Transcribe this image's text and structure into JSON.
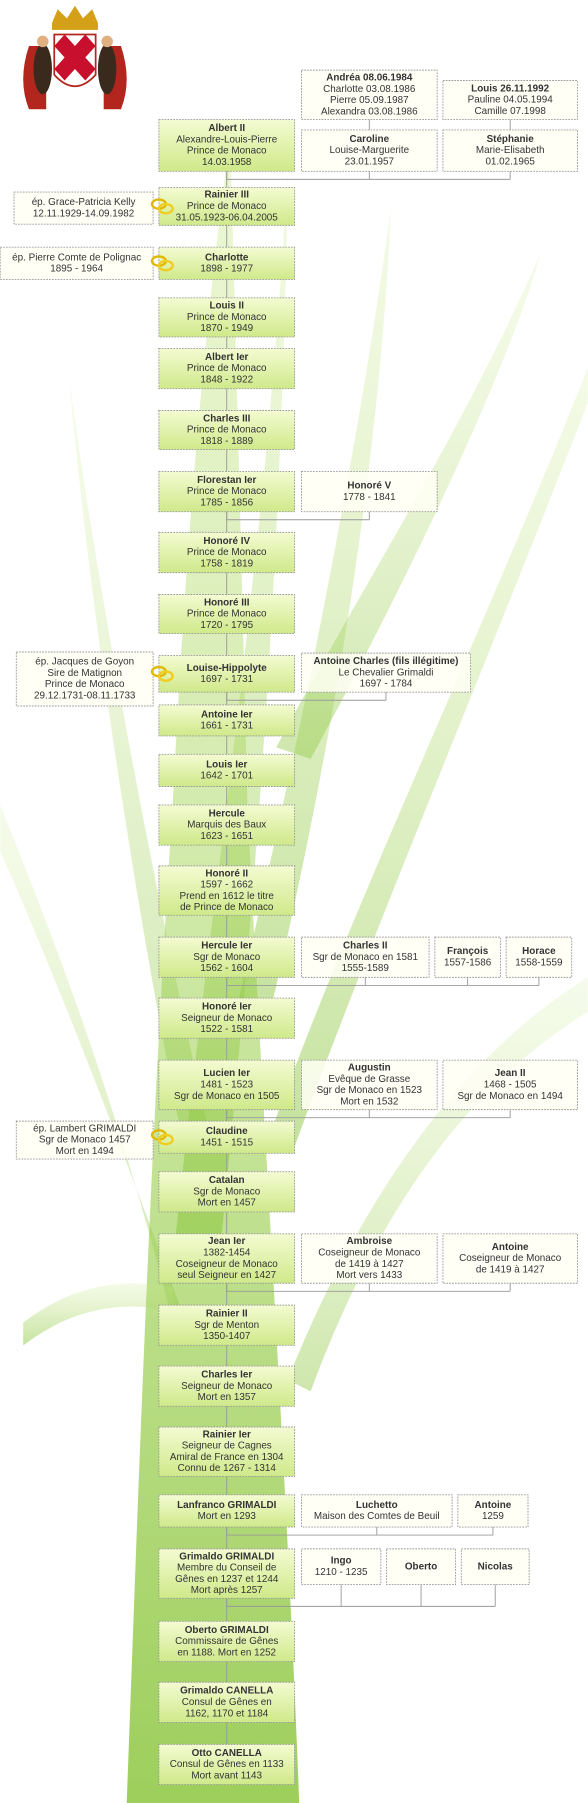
{
  "lineage": [
    {
      "lines": [
        "Albert II",
        "Alexandre-Louis-Pierre",
        "Prince de Monaco",
        "14.03.1958"
      ]
    },
    {
      "lines": [
        "Rainier III",
        "Prince de Monaco",
        "31.05.1923-06.04.2005"
      ]
    },
    {
      "lines": [
        "Charlotte",
        "1898 - 1977"
      ]
    },
    {
      "lines": [
        "Louis II",
        "Prince de Monaco",
        "1870 - 1949"
      ]
    },
    {
      "lines": [
        "Albert Ier",
        "Prince de Monaco",
        "1848 - 1922"
      ]
    },
    {
      "lines": [
        "Charles III",
        "Prince de Monaco",
        "1818 - 1889"
      ]
    },
    {
      "lines": [
        "Florestan Ier",
        "Prince de Monaco",
        "1785 - 1856"
      ]
    },
    {
      "lines": [
        "Honoré IV",
        "Prince de Monaco",
        "1758 - 1819"
      ]
    },
    {
      "lines": [
        "Honoré III",
        "Prince de Monaco",
        "1720 - 1795"
      ]
    },
    {
      "lines": [
        "Louise-Hippolyte",
        "1697 - 1731"
      ]
    },
    {
      "lines": [
        "Antoine Ier",
        "1661 - 1731"
      ]
    },
    {
      "lines": [
        "Louis Ier",
        "1642 - 1701"
      ]
    },
    {
      "lines": [
        "Hercule",
        "Marquis des Baux",
        "1623 - 1651"
      ]
    },
    {
      "lines": [
        "Honoré II",
        "1597 - 1662",
        "Prend en 1612 le titre",
        "de Prince de Monaco"
      ]
    },
    {
      "lines": [
        "Hercule Ier",
        "Sgr de Monaco",
        "1562 - 1604"
      ]
    },
    {
      "lines": [
        "Honoré Ier",
        "Seigneur de Monaco",
        "1522 - 1581"
      ]
    },
    {
      "lines": [
        "Lucien Ier",
        "1481 - 1523",
        "Sgr de Monaco en 1505"
      ]
    },
    {
      "lines": [
        "Claudine",
        "1451 - 1515"
      ]
    },
    {
      "lines": [
        "Catalan",
        "Sgr de Monaco",
        "Mort en 1457"
      ]
    },
    {
      "lines": [
        "Jean Ier",
        "1382-1454",
        "Coseigneur de Monaco",
        "seul Seigneur en 1427"
      ]
    },
    {
      "lines": [
        "Rainier II",
        "Sgr de Menton",
        "1350-1407"
      ]
    },
    {
      "lines": [
        "Charles Ier",
        "Seigneur de Monaco",
        "Mort en 1357"
      ]
    },
    {
      "lines": [
        "Rainier Ier",
        "Seigneur de Cagnes",
        "Amiral de France en 1304",
        "Connu de 1267 - 1314"
      ]
    },
    {
      "lines": [
        "Lanfranco GRIMALDI",
        "Mort en 1293"
      ]
    },
    {
      "lines": [
        "Grimaldo GRIMALDI",
        "Membre du Conseil de",
        "Gênes en 1237 et 1244",
        "Mort après 1257"
      ]
    },
    {
      "lines": [
        "Oberto GRIMALDI",
        "Commissaire de Gênes",
        "en 1188. Mort en 1252"
      ]
    },
    {
      "lines": [
        "Grimaldo CANELLA",
        "Consul de Gênes en",
        "1162, 1170 et 1184"
      ]
    },
    {
      "lines": [
        "Otto CANELLA",
        "Consul de Gênes en 1133",
        "Mort avant 1143"
      ]
    }
  ],
  "spouses": [
    {
      "lines": [
        "ép. Grace-Patricia Kelly",
        "12.11.1929-14.09.1982"
      ]
    },
    {
      "lines": [
        "ép. Pierre Comte de Polignac",
        "1895 - 1964"
      ]
    },
    {
      "lines": [
        "ép. Jacques de Goyon",
        "Sire de Matignon",
        "Prince de Monaco",
        "29.12.1731-08.11.1733"
      ]
    },
    {
      "lines": [
        "ép. Lambert GRIMALDI",
        "Sgr de Monaco 1457",
        "Mort en 1494"
      ]
    }
  ],
  "relatives": [
    {
      "lines": [
        "Andréa 08.06.1984",
        "Charlotte 03.08.1986",
        "Pierre 05.09.1987",
        "Alexandra 03.08.1986"
      ]
    },
    {
      "lines": [
        "Louis 26.11.1992",
        "Pauline 04.05.1994",
        "Camille 07.1998"
      ]
    },
    {
      "lines": [
        "Caroline",
        "Louise-Marguerite",
        "23.01.1957"
      ]
    },
    {
      "lines": [
        "Stéphanie",
        "Marie-Elisabeth",
        "01.02.1965"
      ]
    },
    {
      "lines": [
        "Honoré V",
        "1778 - 1841"
      ]
    },
    {
      "lines": [
        "Antoine Charles (fils illégitime)",
        "Le Chevalier Grimaldi",
        "1697 - 1784"
      ]
    },
    {
      "lines": [
        "Charles II",
        "Sgr de Monaco en 1581",
        "1555-1589"
      ]
    },
    {
      "lines": [
        "François",
        "1557-1586"
      ]
    },
    {
      "lines": [
        "Horace",
        "1558-1559"
      ]
    },
    {
      "lines": [
        "Augustin",
        "Evêque de Grasse",
        "Sgr de Monaco en 1523",
        "Mort en 1532"
      ]
    },
    {
      "lines": [
        "Jean II",
        "1468 - 1505",
        "Sgr de Monaco en 1494"
      ]
    },
    {
      "lines": [
        "Ambroise",
        "Coseigneur de Monaco",
        "de 1419 à 1427",
        "Mort vers 1433"
      ]
    },
    {
      "lines": [
        "Antoine",
        "Coseigneur de Monaco",
        "de 1419 à 1427"
      ]
    },
    {
      "lines": [
        "Luchetto",
        "Maison des Comtes de Beuil"
      ]
    },
    {
      "lines": [
        "Antoine",
        "1259"
      ]
    },
    {
      "lines": [
        "Ingo",
        "1210 - 1235"
      ]
    },
    {
      "lines": [
        "Oberto"
      ]
    },
    {
      "lines": [
        "Nicolas"
      ]
    }
  ]
}
